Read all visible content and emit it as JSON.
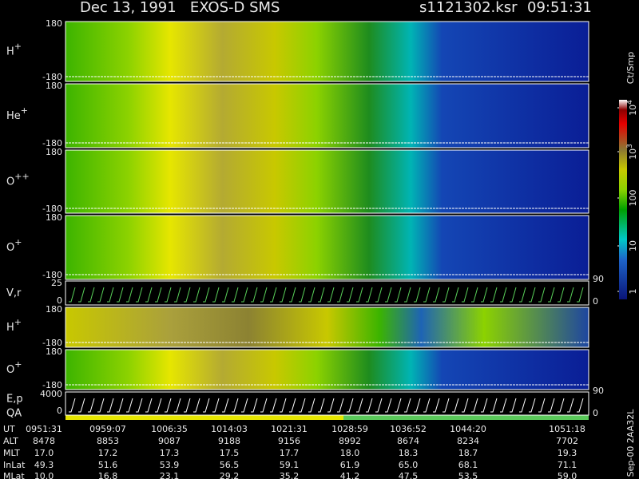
{
  "header": {
    "title": "Dec 13, 1991   EXOS-D SMS",
    "file": "s1121302.ksr",
    "time": "09:51:31"
  },
  "panels": [
    {
      "label": "H",
      "sup": "+",
      "top": "180",
      "bottom": "-180"
    },
    {
      "label": "He",
      "sup": "+",
      "top": "180",
      "bottom": "-180"
    },
    {
      "label": "O",
      "sup": "++",
      "top": "180",
      "bottom": "-180"
    },
    {
      "label": "O",
      "sup": "+",
      "top": "180",
      "bottom": "-180"
    },
    {
      "label": "V,r",
      "sup": "",
      "top": "25",
      "bottom": "0"
    },
    {
      "label": "H",
      "sup": "+",
      "top": "180",
      "bottom": "-180"
    },
    {
      "label": "O",
      "sup": "+",
      "top": "180",
      "bottom": "-180"
    },
    {
      "label": "E,p",
      "sup": "",
      "top": "4000",
      "bottom": "0"
    }
  ],
  "qa_label": "QA",
  "right_axis": [
    "90",
    "0",
    "90",
    "0"
  ],
  "colorbar": {
    "unit": "Ct/Smp",
    "ticks": [
      {
        "base": "10",
        "exp": "4"
      },
      {
        "base": "10",
        "exp": "3"
      },
      {
        "base": "100",
        "exp": ""
      },
      {
        "base": "10",
        "exp": ""
      },
      {
        "base": "1",
        "exp": ""
      }
    ]
  },
  "table": {
    "rows": [
      [
        "UT",
        "0951:31",
        "0959:07",
        "1006:35",
        "1014:03",
        "1021:31",
        "1028:59",
        "1036:52",
        "1044:20",
        "1051:18"
      ],
      [
        "ALT",
        "8478",
        "8853",
        "9087",
        "9188",
        "9156",
        "8992",
        "8674",
        "8234",
        "7702"
      ],
      [
        "MLT",
        "17.0",
        "17.2",
        "17.3",
        "17.5",
        "17.7",
        "18.0",
        "18.3",
        "18.7",
        "19.3"
      ],
      [
        "InLat",
        "49.3",
        "51.6",
        "53.9",
        "56.5",
        "59.1",
        "61.9",
        "65.0",
        "68.1",
        "71.1"
      ],
      [
        "MLat",
        "10.0",
        "16.8",
        "23.1",
        "29.2",
        "35.2",
        "41.2",
        "47.5",
        "53.5",
        "59.0"
      ]
    ]
  },
  "side_label": "Sep-00  2AA32L"
}
